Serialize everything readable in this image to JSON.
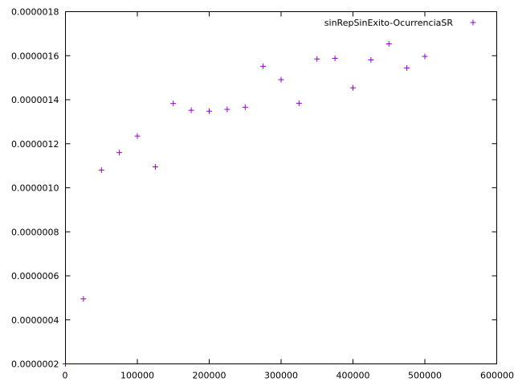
{
  "chart_data": {
    "type": "scatter",
    "title": "",
    "xlabel": "",
    "ylabel": "",
    "xlim": [
      0,
      600000
    ],
    "ylim": [
      2e-07,
      1.8e-06
    ],
    "x_ticks": [
      "0",
      "100000",
      "200000",
      "300000",
      "400000",
      "500000",
      "600000"
    ],
    "y_ticks": [
      "0.0000002",
      "0.0000004",
      "0.0000006",
      "0.0000008",
      "0.0000010",
      "0.0000012",
      "0.0000014",
      "0.0000016",
      "0.0000018"
    ],
    "grid": false,
    "legend_position": "top-right",
    "marker": "plus",
    "series": [
      {
        "name": "sinRepSinExito-OcurrenciaSR",
        "color": "#9400d3",
        "points": [
          [
            0,
            2e-07
          ],
          [
            25000,
            4.95e-07
          ],
          [
            50000,
            1.08e-06
          ],
          [
            75000,
            1.16e-06
          ],
          [
            100000,
            1.235e-06
          ],
          [
            125000,
            1.095e-06
          ],
          [
            150000,
            1.383e-06
          ],
          [
            175000,
            1.352e-06
          ],
          [
            200000,
            1.348e-06
          ],
          [
            225000,
            1.356e-06
          ],
          [
            250000,
            1.366e-06
          ],
          [
            275000,
            1.552e-06
          ],
          [
            300000,
            1.491e-06
          ],
          [
            325000,
            1.384e-06
          ],
          [
            350000,
            1.585e-06
          ],
          [
            375000,
            1.588e-06
          ],
          [
            400000,
            1.454e-06
          ],
          [
            425000,
            1.581e-06
          ],
          [
            450000,
            1.654e-06
          ],
          [
            475000,
            1.544e-06
          ],
          [
            500000,
            1.597e-06
          ]
        ]
      }
    ]
  }
}
